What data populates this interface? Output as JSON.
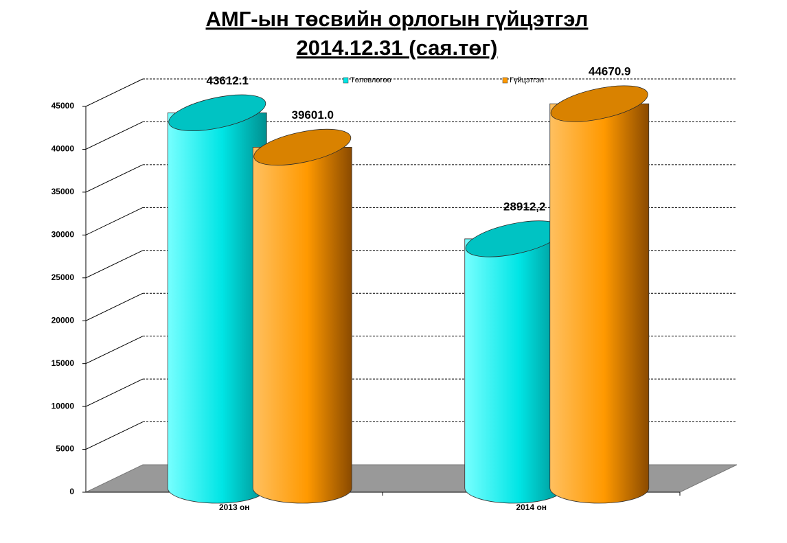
{
  "chart_data": {
    "type": "cylinder-bar",
    "title": "АМГ-ын төсвийн орлогын гүйцэтгэл",
    "subtitle": "2014.12.31  (сая.төг)",
    "categories": [
      "2013 он",
      "2014 он"
    ],
    "series": [
      {
        "name": "Төлөвлөгөө",
        "color": "#00e5e5",
        "values": [
          43612.1,
          28912.2
        ],
        "value_labels": [
          "43612.1",
          "28912,2"
        ]
      },
      {
        "name": "Гүйцэтгэл",
        "color": "#ff9900",
        "values": [
          39601.0,
          44670.9
        ],
        "value_labels": [
          "39601.0",
          "44670.9"
        ]
      }
    ],
    "ylim": [
      0,
      45000
    ],
    "yticks": [
      0,
      5000,
      10000,
      15000,
      20000,
      25000,
      30000,
      35000,
      40000,
      45000
    ],
    "grid": true
  }
}
